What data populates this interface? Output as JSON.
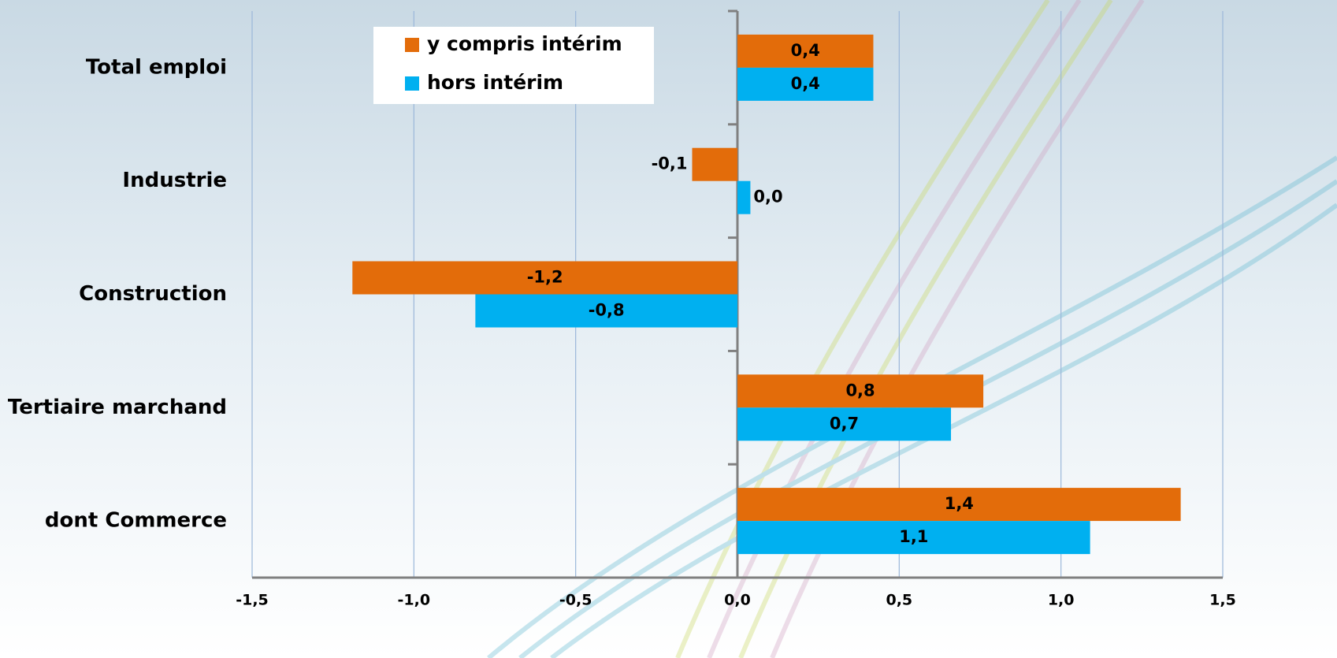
{
  "chart_data": {
    "type": "bar",
    "orientation": "horizontal",
    "categories": [
      "Total emploi",
      "Industrie",
      "Construction",
      "Tertiaire marchand",
      "dont Commerce"
    ],
    "series": [
      {
        "name": "y compris intérim",
        "color": "#E36C0A",
        "values": [
          0.42,
          -0.14,
          -1.19,
          0.76,
          1.37
        ],
        "value_labels": [
          "0,4",
          "-0,1",
          "-1,2",
          "0,8",
          "1,4"
        ]
      },
      {
        "name": "hors intérim",
        "color": "#00B0F0",
        "values": [
          0.42,
          0.04,
          -0.81,
          0.66,
          1.09
        ],
        "value_labels": [
          "0,4",
          "0,0",
          "-0,8",
          "0,7",
          "1,1"
        ]
      }
    ],
    "xlim": [
      -1.5,
      1.5
    ],
    "xticks": [
      {
        "value": -1.5,
        "label": "-1,5"
      },
      {
        "value": -1,
        "label": "-1,0"
      },
      {
        "value": -0.5,
        "label": "-0,5"
      },
      {
        "value": 0,
        "label": "0,0"
      },
      {
        "value": 0.5,
        "label": "0,5"
      },
      {
        "value": 1,
        "label": "1,0"
      },
      {
        "value": 1.5,
        "label": "1,5"
      }
    ],
    "grid": true,
    "legend": "top-left"
  }
}
